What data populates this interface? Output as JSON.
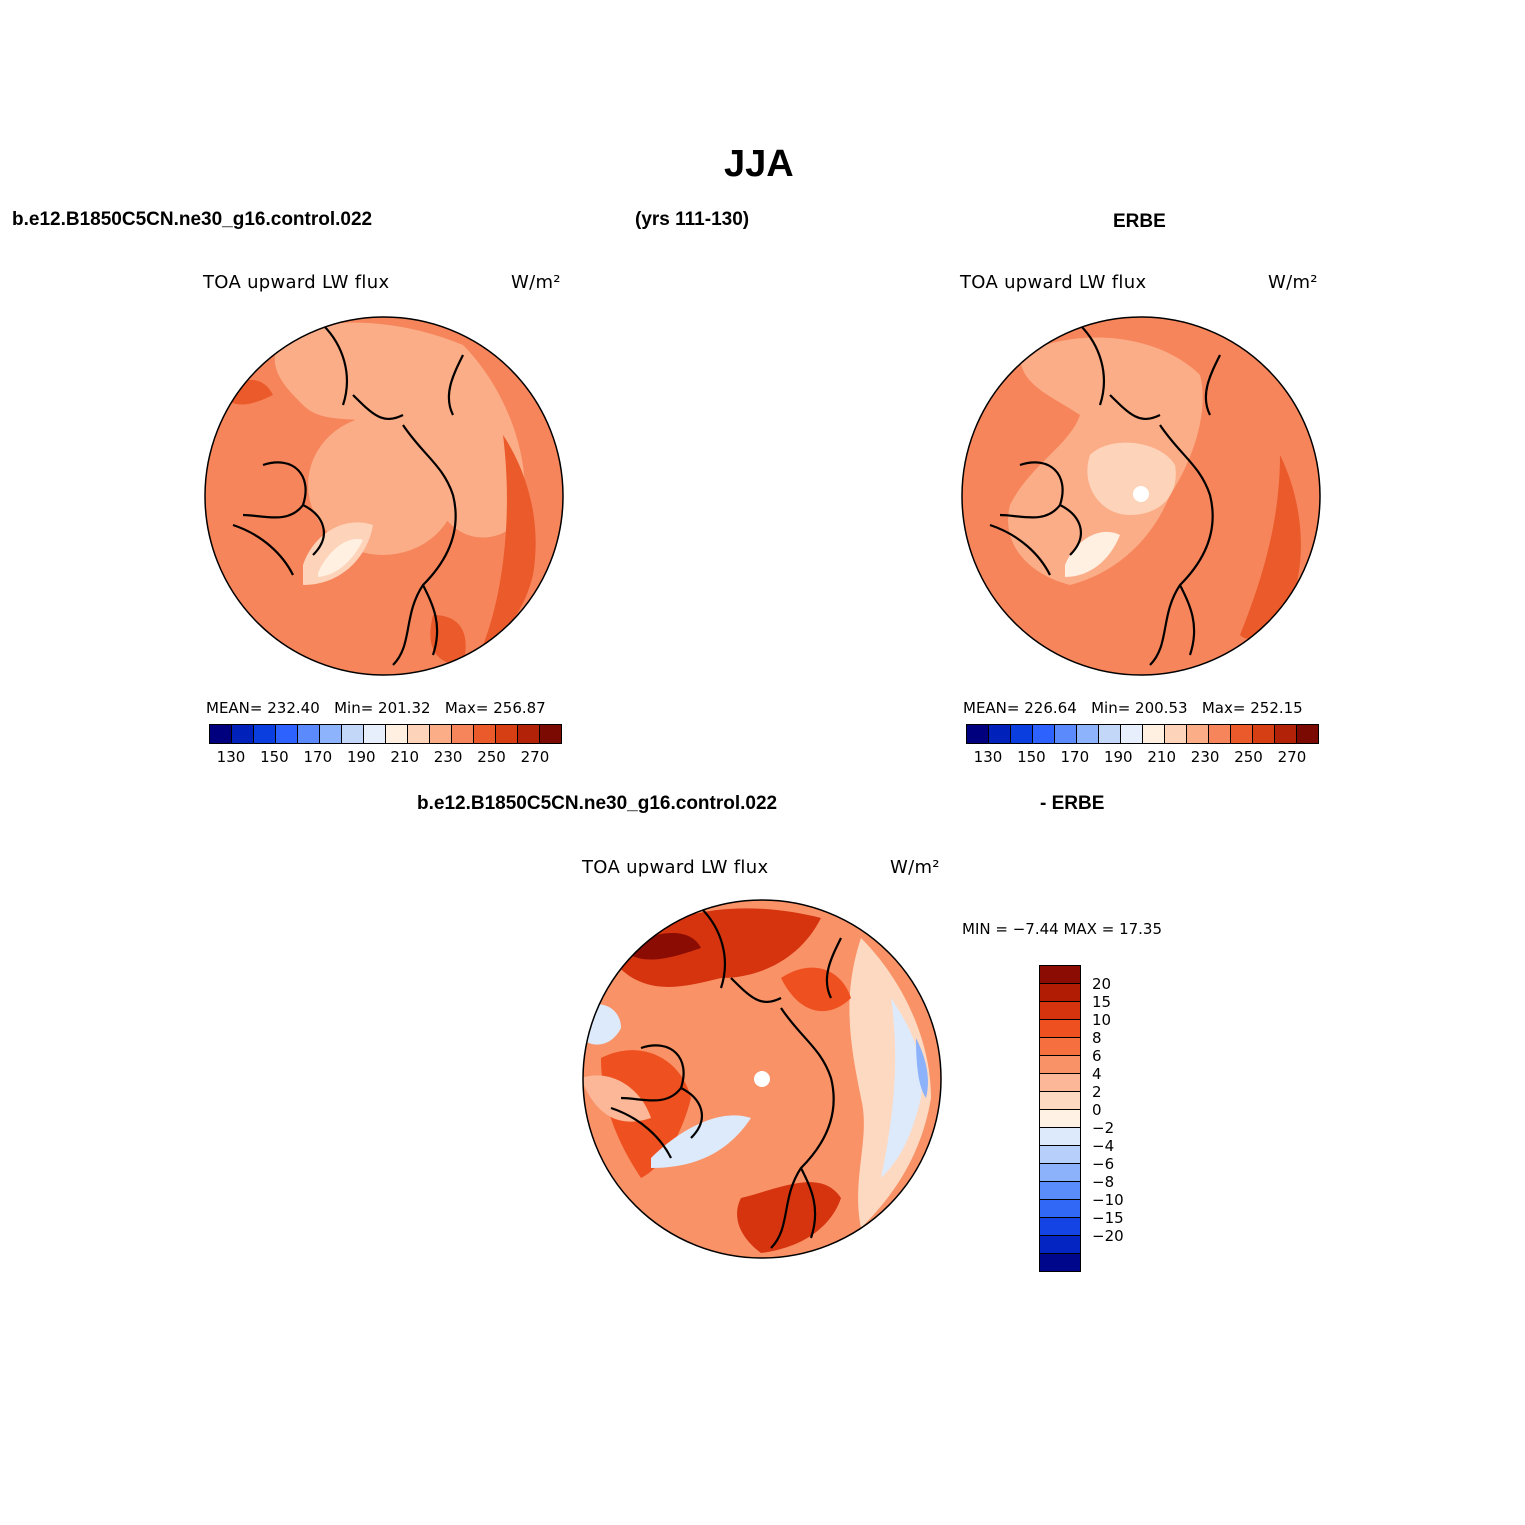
{
  "main_title": "JJA",
  "top_left_case": "b.e12.B1850C5CN.ne30_g16.control.022",
  "top_years": "(yrs 111-130)",
  "top_right_case": "ERBE",
  "diff_case": "b.e12.B1850C5CN.ne30_g16.control.022",
  "diff_minus": "- ERBE",
  "panels": [
    {
      "var_label": "TOA upward LW flux",
      "units": "W/m²",
      "mean_label": "MEAN=",
      "mean": "232.40",
      "min_label": "Min=",
      "min": "201.32",
      "max_label": "Max=",
      "max": "256.87"
    },
    {
      "var_label": "TOA upward LW flux",
      "units": "W/m²",
      "mean_label": "MEAN=",
      "mean": "226.64",
      "min_label": "Min=",
      "min": "200.53",
      "max_label": "Max=",
      "max": "252.15"
    },
    {
      "var_label": "TOA upward LW flux",
      "units": "W/m²"
    }
  ],
  "diff_stats": {
    "min_label": "MIN =",
    "min": "−7.44",
    "max_label": "MAX =",
    "max": "17.35"
  },
  "abs_colorbar": {
    "colors": [
      "#00007f",
      "#0022bb",
      "#0a3ede",
      "#2d62ff",
      "#5a8afc",
      "#8cb3fb",
      "#c3d8f8",
      "#e6effb",
      "#fff0e2",
      "#fdd3ba",
      "#fbad87",
      "#f6855b",
      "#ea5a2a",
      "#d63e14",
      "#b22209",
      "#7a0a02"
    ],
    "ticks": [
      "130",
      "150",
      "170",
      "190",
      "210",
      "230",
      "250",
      "270"
    ]
  },
  "diff_colorbar": {
    "colors": [
      "#8a0c02",
      "#b11c05",
      "#d5340f",
      "#ee501f",
      "#f66f3e",
      "#f99267",
      "#fbb797",
      "#fdd9c1",
      "#fff1e4",
      "#ddeafb",
      "#b6d0fb",
      "#8bb2fb",
      "#5b8dfa",
      "#3268f6",
      "#1444e4",
      "#0525c2",
      "#00078a"
    ],
    "labels": [
      "20",
      "15",
      "10",
      "8",
      "6",
      "4",
      "2",
      "0",
      "−2",
      "−4",
      "−6",
      "−8",
      "−10",
      "−15",
      "−20"
    ]
  }
}
